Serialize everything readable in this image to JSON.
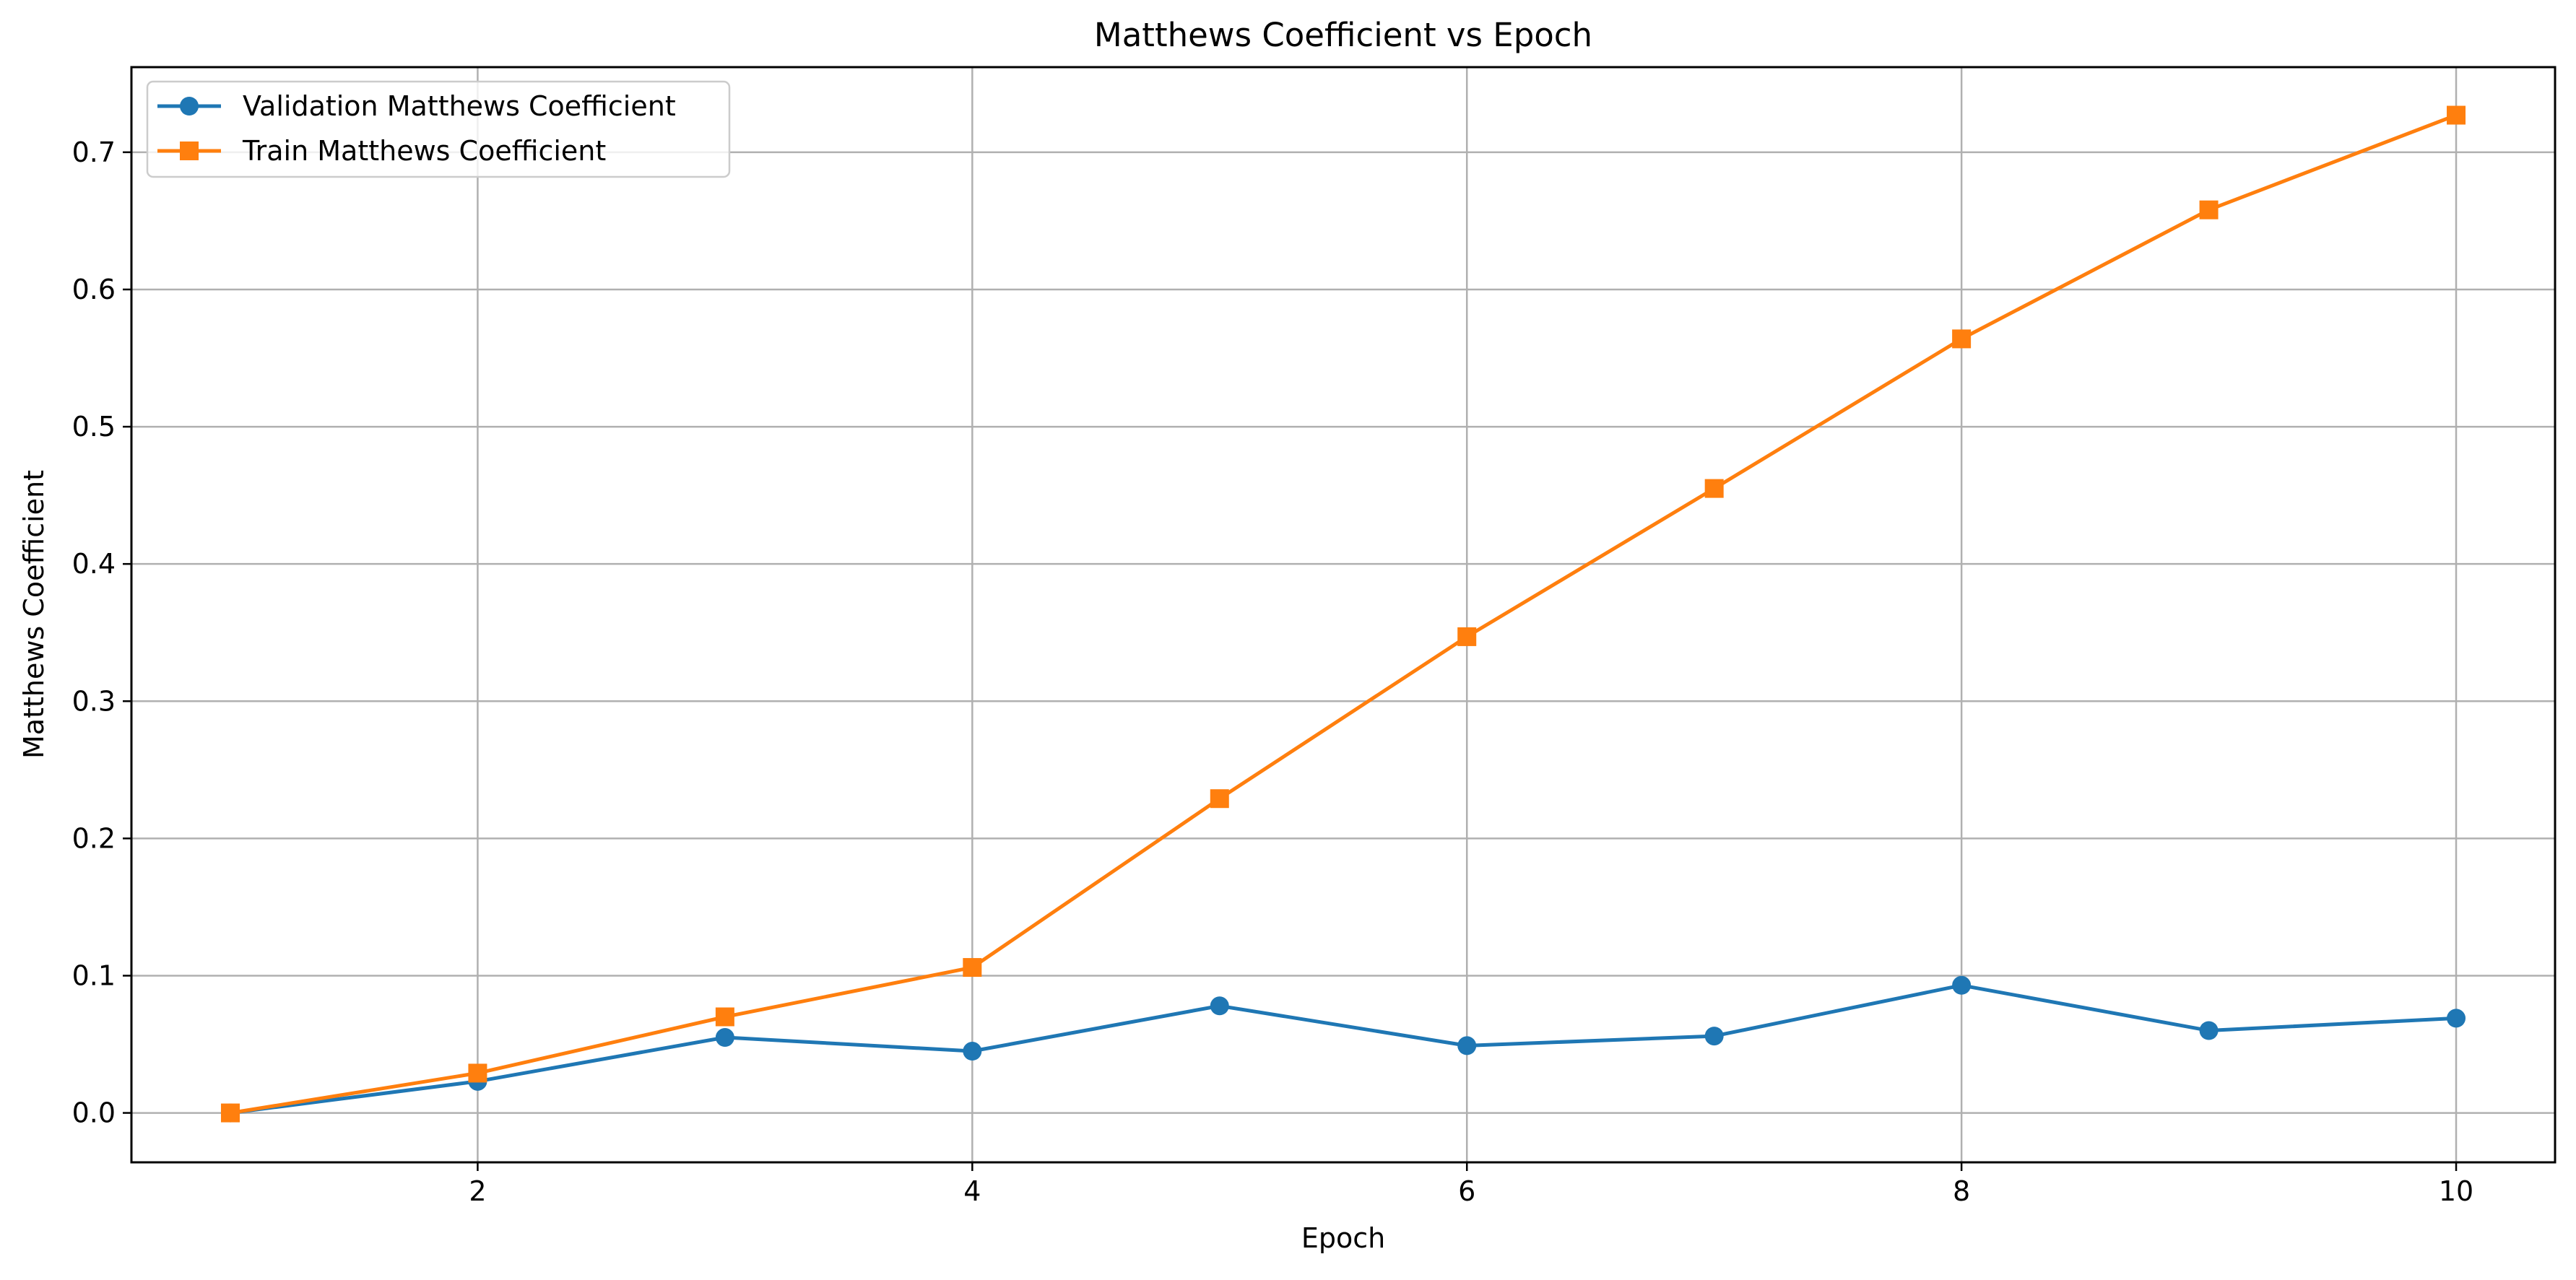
{
  "chart_data": {
    "type": "line",
    "title": "Matthews Coefficient vs Epoch",
    "xlabel": "Epoch",
    "ylabel": "Matthews Coefficient",
    "xlim": [
      0.6,
      10.4
    ],
    "ylim": [
      -0.036,
      0.762
    ],
    "xticks": [
      2,
      4,
      6,
      8,
      10
    ],
    "xtick_labels": [
      "2",
      "4",
      "6",
      "8",
      "10"
    ],
    "yticks": [
      0.0,
      0.1,
      0.2,
      0.3,
      0.4,
      0.5,
      0.6,
      0.7
    ],
    "ytick_labels": [
      "0.0",
      "0.1",
      "0.2",
      "0.3",
      "0.4",
      "0.5",
      "0.6",
      "0.7"
    ],
    "grid": true,
    "legend_position": "upper left",
    "x": [
      1,
      2,
      3,
      4,
      5,
      6,
      7,
      8,
      9,
      10
    ],
    "series": [
      {
        "name": "Validation Matthews Coefficient",
        "color": "#1f77b4",
        "marker": "circle",
        "values": [
          0.0,
          0.023,
          0.055,
          0.045,
          0.078,
          0.049,
          0.056,
          0.093,
          0.06,
          0.069
        ]
      },
      {
        "name": "Train Matthews Coefficient",
        "color": "#ff7f0e",
        "marker": "square",
        "values": [
          0.0,
          0.029,
          0.07,
          0.106,
          0.229,
          0.347,
          0.455,
          0.564,
          0.658,
          0.727
        ]
      }
    ]
  }
}
